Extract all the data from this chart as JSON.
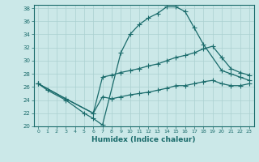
{
  "xlabel": "Humidex (Indice chaleur)",
  "bg_color": "#cbe8e8",
  "line_color": "#1a6b6b",
  "grid_color": "#aad0d0",
  "xlim": [
    -0.5,
    23.5
  ],
  "ylim": [
    20,
    38.5
  ],
  "xticks": [
    0,
    1,
    2,
    3,
    4,
    5,
    6,
    7,
    8,
    9,
    10,
    11,
    12,
    13,
    14,
    15,
    16,
    17,
    18,
    19,
    20,
    21,
    22,
    23
  ],
  "yticks": [
    20,
    22,
    24,
    26,
    28,
    30,
    32,
    34,
    36,
    38
  ],
  "line1_x": [
    0,
    1,
    3,
    5,
    6,
    7,
    9,
    10,
    11,
    12,
    13,
    14,
    15,
    16,
    17,
    18,
    20,
    21,
    22,
    23
  ],
  "line1_y": [
    26.5,
    25.5,
    24.0,
    22.0,
    21.2,
    20.2,
    31.2,
    34.0,
    35.5,
    36.5,
    37.2,
    38.2,
    38.2,
    37.5,
    35.0,
    32.5,
    28.5,
    28.0,
    27.5,
    27.0
  ],
  "line2_x": [
    0,
    3,
    6,
    7,
    8,
    9,
    10,
    11,
    12,
    13,
    14,
    15,
    16,
    17,
    18,
    19,
    20,
    21,
    22,
    23
  ],
  "line2_y": [
    26.5,
    24.2,
    22.0,
    27.5,
    27.8,
    28.2,
    28.5,
    28.8,
    29.2,
    29.5,
    30.0,
    30.5,
    30.8,
    31.2,
    31.8,
    32.2,
    30.5,
    28.8,
    28.2,
    27.8
  ],
  "line3_x": [
    0,
    3,
    6,
    7,
    8,
    9,
    10,
    11,
    12,
    13,
    14,
    15,
    16,
    17,
    18,
    19,
    20,
    21,
    22,
    23
  ],
  "line3_y": [
    26.5,
    24.2,
    22.0,
    24.5,
    24.2,
    24.5,
    24.8,
    25.0,
    25.2,
    25.5,
    25.8,
    26.2,
    26.2,
    26.5,
    26.8,
    27.0,
    26.5,
    26.2,
    26.2,
    26.5
  ]
}
